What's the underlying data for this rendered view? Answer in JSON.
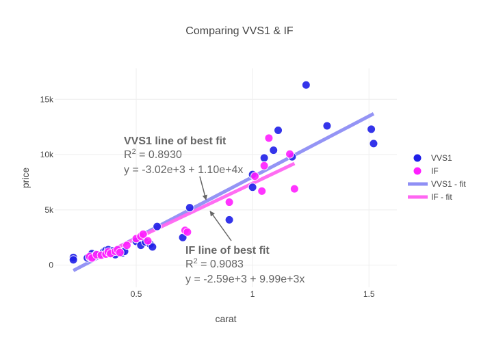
{
  "chart_data": {
    "type": "scatter",
    "title": "Comparing VVS1 & IF",
    "xlabel": "carat",
    "ylabel": "price",
    "xlim": [
      0.15,
      1.62
    ],
    "ylim": [
      -2000,
      17800
    ],
    "x_ticks": [
      {
        "value": 0.5,
        "label": "0.5"
      },
      {
        "value": 1.0,
        "label": "1"
      },
      {
        "value": 1.5,
        "label": "1.5"
      }
    ],
    "y_ticks": [
      {
        "value": 0,
        "label": "0"
      },
      {
        "value": 5000,
        "label": "5k"
      },
      {
        "value": 10000,
        "label": "10k"
      },
      {
        "value": 15000,
        "label": "15k"
      }
    ],
    "grid": true,
    "legend_placement": "right",
    "series": [
      {
        "name": "VVS1",
        "kind": "markers",
        "color": "#1f1fe8",
        "points": [
          [
            0.23,
            700
          ],
          [
            0.23,
            480
          ],
          [
            0.29,
            650
          ],
          [
            0.3,
            720
          ],
          [
            0.31,
            900
          ],
          [
            0.31,
            1050
          ],
          [
            0.32,
            820
          ],
          [
            0.33,
            1000
          ],
          [
            0.34,
            950
          ],
          [
            0.36,
            1200
          ],
          [
            0.37,
            1350
          ],
          [
            0.38,
            1400
          ],
          [
            0.39,
            1100
          ],
          [
            0.4,
            1300
          ],
          [
            0.41,
            950
          ],
          [
            0.42,
            1350
          ],
          [
            0.44,
            1100
          ],
          [
            0.45,
            1250
          ],
          [
            0.5,
            2150
          ],
          [
            0.52,
            1800
          ],
          [
            0.54,
            2100
          ],
          [
            0.56,
            1900
          ],
          [
            0.57,
            1650
          ],
          [
            0.59,
            3500
          ],
          [
            0.7,
            2500
          ],
          [
            0.73,
            5200
          ],
          [
            0.9,
            4100
          ],
          [
            1.0,
            8200
          ],
          [
            1.0,
            7050
          ],
          [
            1.05,
            9700
          ],
          [
            1.09,
            10400
          ],
          [
            1.11,
            12200
          ],
          [
            1.17,
            9800
          ],
          [
            1.23,
            16300
          ],
          [
            1.32,
            12600
          ],
          [
            1.51,
            12300
          ],
          [
            1.52,
            11000
          ]
        ]
      },
      {
        "name": "IF",
        "kind": "markers",
        "color": "#ff1fff",
        "points": [
          [
            0.3,
            780
          ],
          [
            0.31,
            650
          ],
          [
            0.33,
            950
          ],
          [
            0.35,
            900
          ],
          [
            0.37,
            1000
          ],
          [
            0.38,
            1200
          ],
          [
            0.39,
            1050
          ],
          [
            0.41,
            1250
          ],
          [
            0.42,
            1400
          ],
          [
            0.43,
            1150
          ],
          [
            0.46,
            1800
          ],
          [
            0.5,
            2400
          ],
          [
            0.52,
            2600
          ],
          [
            0.53,
            2800
          ],
          [
            0.55,
            2200
          ],
          [
            0.71,
            3150
          ],
          [
            0.72,
            3000
          ],
          [
            0.9,
            5700
          ],
          [
            1.01,
            8050
          ],
          [
            1.04,
            6700
          ],
          [
            1.05,
            9000
          ],
          [
            1.07,
            11500
          ],
          [
            1.16,
            10050
          ],
          [
            1.18,
            6900
          ]
        ]
      },
      {
        "name": "VVS1 - fit",
        "kind": "line",
        "color": "#8f8ff5",
        "intercept": -3020,
        "slope": 11000,
        "x_range": [
          0.23,
          1.52
        ]
      },
      {
        "name": "IF - fit",
        "kind": "line",
        "color": "#ff66f2",
        "intercept": -2590,
        "slope": 9990,
        "x_range": [
          0.3,
          1.18
        ]
      }
    ],
    "annotations": [
      {
        "id": "vvs1",
        "heading": "VVS1 line of best fit",
        "r2_label": "R",
        "r2_sup": "2",
        "r2_value": " = 0.8930",
        "equation": "y   = -3.02e+3 + 1.10e+4x",
        "arrow_to": [
          0.8,
          5800
        ]
      },
      {
        "id": "if",
        "heading": "IF line of best fit",
        "r2_label": "R",
        "r2_sup": "2",
        "r2_value": " = 0.9083",
        "equation": "y   = -2.59e+3 + 9.99e+3x",
        "arrow_to": [
          0.8,
          5000
        ]
      }
    ]
  }
}
